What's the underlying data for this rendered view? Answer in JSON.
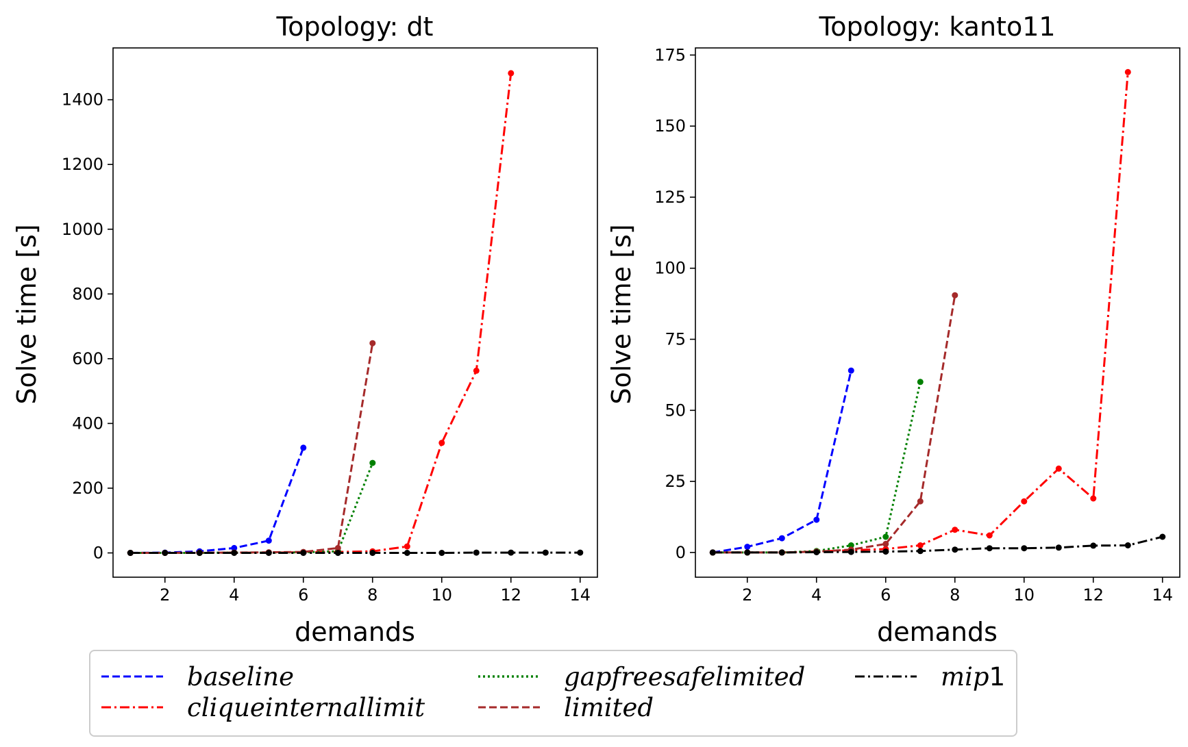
{
  "charts": [
    {
      "title": "Topology: dt",
      "xlabel": "demands",
      "ylabel": "Solve time [s]",
      "x_ticks": [
        "2",
        "4",
        "6",
        "8",
        "10",
        "12",
        "14"
      ],
      "y_ticks": [
        "0",
        "200",
        "400",
        "600",
        "800",
        "1000",
        "1200",
        "1400"
      ]
    },
    {
      "title": "Topology: kanto11",
      "xlabel": "demands",
      "ylabel": "Solve time [s]",
      "x_ticks": [
        "2",
        "4",
        "6",
        "8",
        "10",
        "12",
        "14"
      ],
      "y_ticks": [
        "0",
        "25",
        "50",
        "75",
        "100",
        "125",
        "150",
        "175"
      ]
    }
  ],
  "legend": {
    "items": [
      {
        "label_italic": "baseline",
        "label_suffix": ""
      },
      {
        "label_italic": "cliqueinternallimit",
        "label_suffix": ""
      },
      {
        "label_italic": "gapfreesafelimited",
        "label_suffix": ""
      },
      {
        "label_italic": "limited",
        "label_suffix": ""
      },
      {
        "label_italic": "mip",
        "label_suffix": "1"
      }
    ]
  },
  "chart_data": [
    {
      "type": "line",
      "title": "Topology: dt",
      "xlabel": "demands",
      "ylabel": "Solve time [s]",
      "xlim": [
        0.5,
        14.5
      ],
      "ylim": [
        -75,
        1560
      ],
      "x_ticks": [
        2,
        4,
        6,
        8,
        10,
        12,
        14
      ],
      "y_ticks": [
        0,
        200,
        400,
        600,
        800,
        1000,
        1200,
        1400
      ],
      "grid": false,
      "series": [
        {
          "name": "baseline",
          "color": "#0000ff",
          "dash": "dashed",
          "x": [
            1,
            2,
            3,
            4,
            5,
            6
          ],
          "y": [
            0,
            1,
            5,
            15,
            38,
            325
          ]
        },
        {
          "name": "cliqueinternallimit",
          "color": "#ff0000",
          "dash": "dashdot",
          "x": [
            1,
            2,
            3,
            4,
            5,
            6,
            7,
            8,
            9,
            10,
            11,
            12
          ],
          "y": [
            0,
            0,
            0,
            1,
            1,
            2,
            3,
            5,
            20,
            340,
            563,
            1482
          ]
        },
        {
          "name": "gapfreesafelimited",
          "color": "#008000",
          "dash": "dotted",
          "x": [
            1,
            2,
            3,
            4,
            5,
            6,
            7,
            8
          ],
          "y": [
            0,
            0,
            0,
            1,
            1,
            2,
            5,
            278
          ]
        },
        {
          "name": "limited",
          "color": "#a52a2a",
          "dash": "dashed",
          "x": [
            1,
            2,
            3,
            4,
            5,
            6,
            7,
            8
          ],
          "y": [
            0,
            0,
            1,
            1,
            2,
            3,
            15,
            648
          ]
        },
        {
          "name": "mip1",
          "color": "#000000",
          "dash": "dashdot",
          "x": [
            1,
            2,
            3,
            4,
            5,
            6,
            7,
            8,
            9,
            10,
            11,
            12,
            13,
            14
          ],
          "y": [
            0,
            0,
            0,
            0,
            0,
            0,
            0,
            0,
            0,
            0,
            1,
            1,
            1,
            1
          ]
        }
      ]
    },
    {
      "type": "line",
      "title": "Topology: kanto11",
      "xlabel": "demands",
      "ylabel": "Solve time [s]",
      "xlim": [
        0.5,
        14.5
      ],
      "ylim": [
        -8.7,
        177.5
      ],
      "x_ticks": [
        2,
        4,
        6,
        8,
        10,
        12,
        14
      ],
      "y_ticks": [
        0,
        25,
        50,
        75,
        100,
        125,
        150,
        175
      ],
      "grid": false,
      "series": [
        {
          "name": "baseline",
          "color": "#0000ff",
          "dash": "dashed",
          "x": [
            1,
            2,
            3,
            4,
            5
          ],
          "y": [
            0,
            2,
            5,
            11.5,
            64
          ]
        },
        {
          "name": "cliqueinternallimit",
          "color": "#ff0000",
          "dash": "dashdot",
          "x": [
            1,
            2,
            3,
            4,
            5,
            6,
            7,
            8,
            9,
            10,
            11,
            12,
            13
          ],
          "y": [
            0,
            0,
            0,
            0.3,
            0.8,
            1.2,
            2.5,
            8,
            6,
            18,
            29.5,
            19,
            169
          ]
        },
        {
          "name": "gapfreesafelimited",
          "color": "#008000",
          "dash": "dotted",
          "x": [
            1,
            2,
            3,
            4,
            5,
            6,
            7
          ],
          "y": [
            0,
            0,
            0,
            0.5,
            2.5,
            5.5,
            60
          ]
        },
        {
          "name": "limited",
          "color": "#a52a2a",
          "dash": "dashed",
          "x": [
            1,
            2,
            3,
            4,
            5,
            6,
            7,
            8
          ],
          "y": [
            0,
            0,
            0,
            0.3,
            1,
            3,
            18,
            90.5
          ]
        },
        {
          "name": "mip1",
          "color": "#000000",
          "dash": "dashdot",
          "x": [
            1,
            2,
            3,
            4,
            5,
            6,
            7,
            8,
            9,
            10,
            11,
            12,
            13,
            14
          ],
          "y": [
            0,
            0,
            0,
            0.1,
            0.2,
            0.3,
            0.5,
            1,
            1.5,
            1.5,
            1.7,
            2.4,
            2.5,
            5.5
          ]
        }
      ]
    }
  ]
}
